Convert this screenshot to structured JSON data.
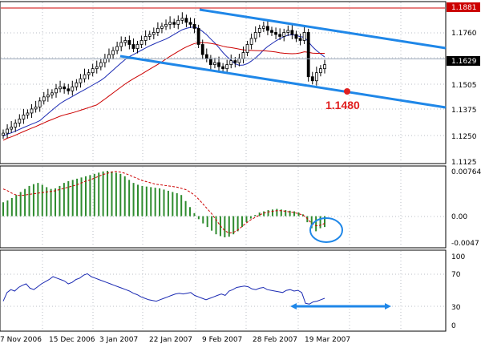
{
  "chart_data": [
    {
      "type": "candlestick",
      "title": "",
      "dates": [
        "7 Nov 2006",
        "15 Dec 2006",
        "3 Jan 2007",
        "22 Jan 2007",
        "9 Feb 2007",
        "28 Feb 2007",
        "19 Mar 2007"
      ],
      "y_ticks": [
        "1.1881",
        "1.1760",
        "1.1629",
        "1.1505",
        "1.1375",
        "1.1250",
        "1.1125"
      ],
      "ylim": [
        1.1125,
        1.1881
      ],
      "current_price": "1.1629",
      "current_price_value": 1.1629,
      "resistance_level": "1.1881",
      "resistance_value": 1.1881,
      "annotation": {
        "text": "1.1480",
        "value": 1.148
      },
      "ohlc_close": [
        1.126,
        1.128,
        1.129,
        1.131,
        1.133,
        1.135,
        1.136,
        1.138,
        1.139,
        1.142,
        1.144,
        1.145,
        1.146,
        1.148,
        1.149,
        1.148,
        1.147,
        1.149,
        1.151,
        1.153,
        1.155,
        1.156,
        1.158,
        1.159,
        1.161,
        1.163,
        1.165,
        1.167,
        1.169,
        1.171,
        1.172,
        1.17,
        1.168,
        1.17,
        1.172,
        1.174,
        1.175,
        1.176,
        1.178,
        1.179,
        1.18,
        1.181,
        1.18,
        1.182,
        1.183,
        1.181,
        1.18,
        1.178,
        1.17,
        1.165,
        1.163,
        1.16,
        1.161,
        1.159,
        1.158,
        1.16,
        1.162,
        1.161,
        1.163,
        1.166,
        1.17,
        1.173,
        1.176,
        1.178,
        1.179,
        1.177,
        1.176,
        1.175,
        1.174,
        1.176,
        1.177,
        1.175,
        1.173,
        1.172,
        1.176,
        1.154,
        1.152,
        1.156,
        1.158,
        1.16
      ]
    },
    {
      "type": "bar",
      "title": "",
      "y_ticks": [
        "0.00764",
        "0.00",
        "-0.0047"
      ],
      "ylim": [
        -0.0047,
        0.00764
      ],
      "values": [
        0.0023,
        0.0026,
        0.003,
        0.0035,
        0.004,
        0.0045,
        0.005,
        0.0053,
        0.0055,
        0.0052,
        0.0048,
        0.0045,
        0.0046,
        0.005,
        0.0055,
        0.0058,
        0.006,
        0.0062,
        0.0064,
        0.0066,
        0.0068,
        0.007,
        0.0072,
        0.0074,
        0.0075,
        0.0074,
        0.0072,
        0.007,
        0.0066,
        0.006,
        0.0055,
        0.0052,
        0.005,
        0.0049,
        0.0048,
        0.0047,
        0.0046,
        0.0044,
        0.0042,
        0.004,
        0.0038,
        0.0035,
        0.0025,
        0.0015,
        0.0005,
        -0.0005,
        -0.0012,
        -0.0018,
        -0.0024,
        -0.003,
        -0.0033,
        -0.0035,
        -0.0034,
        -0.003,
        -0.0025,
        -0.0018,
        -0.001,
        -0.0004,
        0.0002,
        0.0006,
        0.0008,
        0.001,
        0.0011,
        0.0012,
        0.0011,
        0.001,
        0.0009,
        0.0008,
        0.0006,
        0.0003,
        -0.001,
        -0.002,
        -0.0025,
        -0.002,
        -0.0018
      ],
      "signal": [
        0.0045,
        0.0042,
        0.0038,
        0.0035,
        0.0034,
        0.0035,
        0.0036,
        0.0037,
        0.0038,
        0.0039,
        0.004,
        0.0041,
        0.0042,
        0.0044,
        0.0046,
        0.0048,
        0.005,
        0.0052,
        0.0055,
        0.0058,
        0.006,
        0.0063,
        0.0066,
        0.0069,
        0.0071,
        0.0073,
        0.0074,
        0.0073,
        0.0071,
        0.0068,
        0.0065,
        0.0062,
        0.0059,
        0.0057,
        0.0055,
        0.0053,
        0.0052,
        0.0051,
        0.005,
        0.0049,
        0.0048,
        0.0046,
        0.0044,
        0.004,
        0.0035,
        0.0028,
        0.002,
        0.0012,
        0.0004,
        -0.0006,
        -0.0016,
        -0.0024,
        -0.0028,
        -0.0027,
        -0.0023,
        -0.0017,
        -0.0011,
        -0.0006,
        -0.0002,
        0.0002,
        0.0005,
        0.0007,
        0.0008,
        0.0009,
        0.0009,
        0.0008,
        0.0007,
        0.0006,
        0.0004,
        0.0002,
        -0.0004,
        -0.0012,
        -0.0016,
        -0.0015,
        -0.0012
      ]
    },
    {
      "type": "line",
      "title": "",
      "y_ticks": [
        "100",
        "70",
        "30",
        "0"
      ],
      "ylim": [
        0,
        100
      ],
      "values": [
        36,
        48,
        52,
        50,
        55,
        58,
        60,
        54,
        52,
        56,
        60,
        63,
        66,
        70,
        68,
        66,
        64,
        60,
        62,
        66,
        68,
        72,
        74,
        70,
        68,
        66,
        64,
        62,
        60,
        58,
        56,
        54,
        52,
        50,
        47,
        45,
        42,
        40,
        38,
        37,
        36,
        38,
        40,
        42,
        44,
        46,
        47,
        46,
        47,
        48,
        44,
        42,
        40,
        38,
        40,
        42,
        44,
        46,
        44,
        50,
        52,
        55,
        56,
        57,
        56,
        53,
        52,
        54,
        55,
        52,
        51,
        50,
        49,
        48,
        51,
        52,
        50,
        51,
        48,
        33,
        32,
        35,
        36,
        38,
        40
      ]
    }
  ]
}
